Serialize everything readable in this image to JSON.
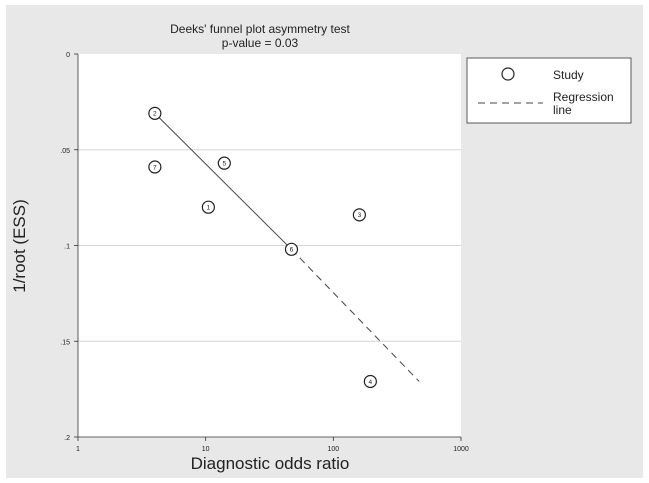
{
  "chart_data": {
    "type": "scatter",
    "title": "Deeks' funnel plot asymmetry test",
    "subtitle": "p-value = 0.03",
    "xlabel": "Diagnostic odds ratio",
    "ylabel": "1/root (ESS)",
    "x_scale": "log",
    "xlim": [
      1,
      1000
    ],
    "ylim": [
      0,
      0.2
    ],
    "y_inverted": true,
    "x_ticks": [
      1,
      10,
      100,
      1000
    ],
    "x_tick_labels": [
      "1",
      "10",
      "100",
      "1000"
    ],
    "y_ticks": [
      0,
      0.05,
      0.1,
      0.15,
      0.2
    ],
    "y_tick_labels": [
      "0",
      ".05",
      ".1",
      ".15",
      ".2"
    ],
    "grid": "horizontal",
    "legend_position": "top-right",
    "legend": [
      {
        "label": "Study",
        "marker": "circle"
      },
      {
        "label": "Regression\nline",
        "style": "dashed"
      }
    ],
    "points": [
      {
        "id": "1",
        "x": 10.5,
        "y": 0.08
      },
      {
        "id": "2",
        "x": 4.0,
        "y": 0.031
      },
      {
        "id": "3",
        "x": 160,
        "y": 0.084
      },
      {
        "id": "4",
        "x": 195,
        "y": 0.171
      },
      {
        "id": "5",
        "x": 14.0,
        "y": 0.057
      },
      {
        "id": "6",
        "x": 47.0,
        "y": 0.102
      },
      {
        "id": "7",
        "x": 4.0,
        "y": 0.059
      }
    ],
    "regression_line": {
      "x": [
        4.0,
        47.0,
        470
      ],
      "y": [
        0.031,
        0.102,
        0.171
      ],
      "solid_until_x": 47.0
    }
  }
}
